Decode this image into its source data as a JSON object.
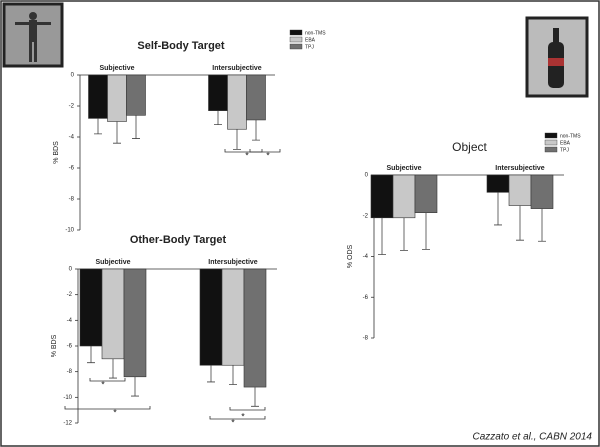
{
  "caption": "Cazzato et al., CABN 2014",
  "chart_data": [
    {
      "type": "bar",
      "title": "Self-Body Target",
      "y_label": "% BDS",
      "categories": [
        "Subjective",
        "Intersubjective"
      ],
      "series": [
        {
          "name": "non-TMS",
          "color": "#111111",
          "values": [
            -2.8,
            -2.3
          ],
          "errors": [
            1.0,
            0.9
          ]
        },
        {
          "name": "EBA",
          "color": "#c8c8c8",
          "values": [
            -3.0,
            -3.5
          ],
          "errors": [
            1.4,
            1.3
          ]
        },
        {
          "name": "TPJ",
          "color": "#707070",
          "values": [
            -2.6,
            -2.9
          ],
          "errors": [
            1.5,
            1.3
          ]
        }
      ],
      "ylim": [
        -10,
        0
      ],
      "yticks": [
        0,
        -2,
        -4,
        -6,
        -8,
        -10
      ],
      "legend": "upper right",
      "annotations": [
        "*",
        "*"
      ]
    },
    {
      "type": "bar",
      "title": "Other-Body Target",
      "y_label": "% BDS",
      "categories": [
        "Subjective",
        "Intersubjective"
      ],
      "series": [
        {
          "color": "#111111",
          "values": [
            -6.0,
            -7.5
          ],
          "errors": [
            1.3,
            1.3
          ]
        },
        {
          "color": "#c8c8c8",
          "values": [
            -7.0,
            -7.5
          ],
          "errors": [
            1.5,
            1.5
          ]
        },
        {
          "color": "#707070",
          "values": [
            -8.4,
            -9.2
          ],
          "errors": [
            1.5,
            1.5
          ]
        }
      ],
      "ylim": [
        -12,
        0
      ],
      "yticks": [
        0,
        -2,
        -4,
        -6,
        -8,
        -10,
        -12
      ],
      "legend": false,
      "annotations": [
        "*",
        "*",
        "*",
        "*"
      ]
    },
    {
      "type": "bar",
      "title": "Object",
      "y_label": "% ODS",
      "categories": [
        "Subjective",
        "Intersubjective"
      ],
      "series": [
        {
          "name": "non-TMS",
          "color": "#111111",
          "values": [
            -2.1,
            -0.85
          ],
          "errors": [
            1.8,
            1.6
          ]
        },
        {
          "name": "EBA",
          "color": "#c8c8c8",
          "values": [
            -2.1,
            -1.5
          ],
          "errors": [
            1.6,
            1.7
          ]
        },
        {
          "name": "TPJ",
          "color": "#707070",
          "values": [
            -1.85,
            -1.65
          ],
          "errors": [
            1.8,
            1.6
          ]
        }
      ],
      "ylim": [
        -8,
        0
      ],
      "yticks": [
        0,
        -2,
        -4,
        -6,
        -8
      ],
      "legend": "upper right",
      "annotations": []
    }
  ]
}
